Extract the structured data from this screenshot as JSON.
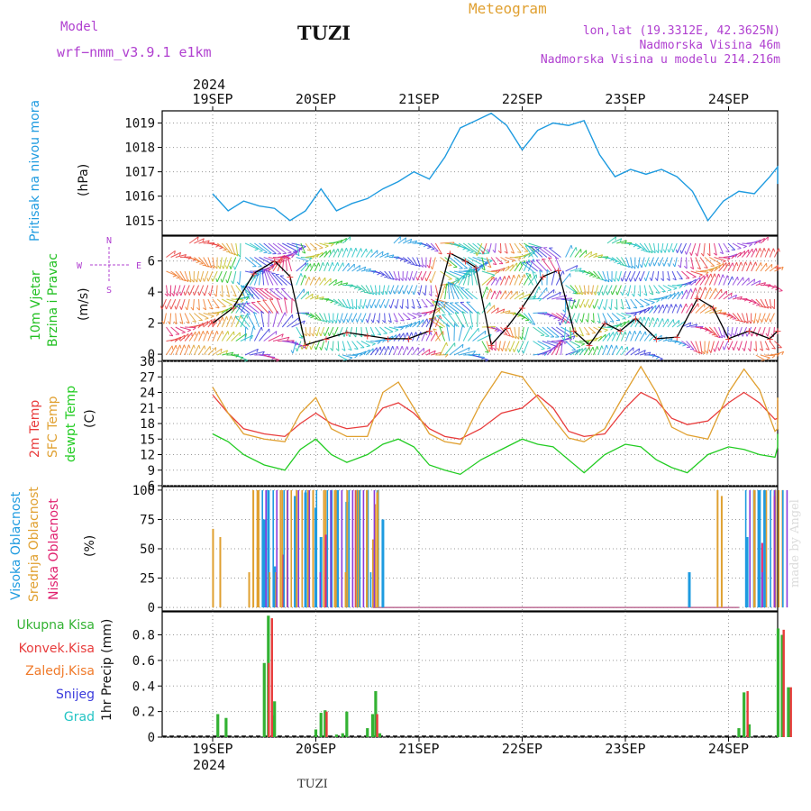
{
  "header": {
    "model_label": "Model",
    "model_name": "wrf−nmm_v3.9.1  e1km",
    "station": "TUZI",
    "title": "Meteogram",
    "lonlat": "lon,lat (19.3312E, 42.3625N)",
    "elevation": "Nadmorska Visina 46m",
    "model_elevation": "Nadmorska Visina u modelu 214.216m",
    "footer_station": "TUZI",
    "credit": "made by Angel"
  },
  "colors": {
    "pressure": "#1e9be0",
    "wind_label": "#22c022",
    "temp2m": "#e83c3c",
    "sfc": "#e0a030",
    "dewpt": "#22cc22",
    "high_cloud": "#1e9be0",
    "mid_cloud": "#e0a030",
    "low_cloud": "#e0206e",
    "rain_total": "#33b233",
    "convective": "#e83c3c",
    "freezing": "#f07a2a",
    "snow": "#3a3adc",
    "hail": "#22c4c4",
    "compass": "#b040d0"
  },
  "chart_data": [
    {
      "type": "line",
      "panel": "pressure",
      "ylabel_1": "Pritisak na nivou mora",
      "ylabel_2": "(hPa)",
      "yticks": [
        "1015",
        "1016",
        "1017",
        "1018",
        "1019"
      ],
      "ylim": [
        1014.4,
        1019.5
      ],
      "x_date_labels": [
        "19SEP",
        "20SEP",
        "21SEP",
        "22SEP",
        "23SEP",
        "24SEP"
      ],
      "year_label": "2024",
      "x_days": [
        0.0,
        0.15,
        0.3,
        0.45,
        0.6,
        0.75,
        0.9,
        1.05,
        1.2,
        1.35,
        1.5,
        1.65,
        1.8,
        1.95,
        2.1,
        2.25,
        2.4,
        2.55,
        2.7,
        2.85,
        3.0,
        3.15,
        3.3,
        3.45,
        3.6,
        3.75,
        3.9,
        4.05,
        4.2,
        4.35,
        4.5,
        4.65,
        4.8,
        4.95,
        5.1,
        5.25,
        5.4,
        5.55,
        5.65
      ],
      "values": [
        1016.1,
        1015.4,
        1015.8,
        1015.6,
        1015.5,
        1015.0,
        1015.4,
        1016.3,
        1015.4,
        1015.7,
        1015.9,
        1016.3,
        1016.6,
        1017.0,
        1016.7,
        1017.6,
        1018.8,
        1019.1,
        1019.4,
        1018.9,
        1017.9,
        1018.7,
        1019.0,
        1018.9,
        1019.1,
        1017.7,
        1016.8,
        1017.1,
        1016.9,
        1017.1,
        1016.8,
        1016.2,
        1015.0,
        1015.8,
        1016.2,
        1016.1,
        1016.8,
        1017.2,
        1016.5
      ],
      "grid": true
    },
    {
      "type": "line",
      "panel": "wind",
      "ylabel_1": "10m Vjetar",
      "ylabel_2": "Brzina i Pravac",
      "ylabel_3": "(m/s)",
      "compass": [
        "N",
        "W",
        "E",
        "S"
      ],
      "yticks": [
        "0",
        "2",
        "4",
        "6"
      ],
      "ylim": [
        -0.4,
        7.6
      ],
      "x_days": [
        0.0,
        0.2,
        0.4,
        0.6,
        0.75,
        0.9,
        1.1,
        1.3,
        1.5,
        1.7,
        1.9,
        2.1,
        2.3,
        2.45,
        2.55,
        2.7,
        2.85,
        3.0,
        3.2,
        3.35,
        3.5,
        3.65,
        3.8,
        3.95,
        4.1,
        4.3,
        4.5,
        4.7,
        4.85,
        5.0,
        5.2,
        5.4,
        5.55,
        5.65
      ],
      "values": [
        2.0,
        3.0,
        5.2,
        6.0,
        5.0,
        0.6,
        1.0,
        1.4,
        1.2,
        1.0,
        1.0,
        1.5,
        6.5,
        6.0,
        5.6,
        0.6,
        1.7,
        3.0,
        5.0,
        5.4,
        1.5,
        0.6,
        2.0,
        1.5,
        2.3,
        1.0,
        1.1,
        3.6,
        3.0,
        1.0,
        1.5,
        1.0,
        1.5,
        5.6
      ],
      "grid": true
    },
    {
      "type": "line",
      "panel": "temperature",
      "ylabel_1": "2m Temp",
      "ylabel_2": "SFC Temp",
      "ylabel_3": "dewpt Temp",
      "ylabel_4": "(C)",
      "yticks": [
        "6",
        "9",
        "12",
        "15",
        "18",
        "21",
        "24",
        "27",
        "30"
      ],
      "ylim": [
        6,
        30
      ],
      "x_days": [
        0.0,
        0.15,
        0.3,
        0.5,
        0.7,
        0.85,
        1.0,
        1.15,
        1.3,
        1.5,
        1.65,
        1.8,
        1.95,
        2.1,
        2.25,
        2.4,
        2.6,
        2.8,
        3.0,
        3.15,
        3.3,
        3.45,
        3.6,
        3.8,
        4.0,
        4.15,
        4.3,
        4.45,
        4.6,
        4.8,
        5.0,
        5.15,
        5.3,
        5.45,
        5.55,
        5.65
      ],
      "series": [
        {
          "key": "temp2m",
          "values": [
            23.5,
            20,
            17,
            16,
            15.5,
            18,
            20,
            18,
            17,
            17.5,
            21,
            22,
            20,
            17,
            15.5,
            15,
            17,
            20,
            21,
            23.5,
            21,
            16.5,
            15.5,
            16,
            21,
            24,
            22.5,
            19,
            17.8,
            18.5,
            22,
            24,
            22,
            18.8,
            19,
            22.5
          ]
        },
        {
          "key": "sfc",
          "values": [
            25,
            20,
            16,
            15,
            14.5,
            20,
            23,
            17,
            15.5,
            15.5,
            24,
            26,
            21,
            16,
            14.5,
            14,
            22,
            28,
            27,
            23,
            19,
            15.2,
            14.5,
            17,
            24,
            29,
            24,
            17.3,
            15.8,
            15,
            24,
            28.5,
            24.5,
            16.5,
            17,
            23
          ]
        },
        {
          "key": "dewpt",
          "values": [
            16,
            14.5,
            12,
            10,
            9,
            13,
            15,
            12,
            10.5,
            12,
            14,
            15,
            13.5,
            10,
            9,
            8.2,
            11,
            13,
            15,
            14,
            13.5,
            11,
            8.5,
            12,
            14,
            13.5,
            11,
            9.5,
            8.5,
            12,
            13.5,
            13,
            12,
            11.5,
            13.5,
            16
          ]
        }
      ],
      "grid": true
    },
    {
      "type": "bar",
      "panel": "cloud",
      "ylabel_1": "Visoka Oblacnost",
      "ylabel_2": "Srednja Oblacnost",
      "ylabel_3": "Niska Oblacnost",
      "ylabel_4": "(%)",
      "yticks": [
        "0",
        "25",
        "50",
        "75",
        "100"
      ],
      "ylim": [
        -3,
        103
      ],
      "series": [
        {
          "key": "high_cloud",
          "points": [
            [
              0.5,
              75
            ],
            [
              0.54,
              100
            ],
            [
              0.6,
              35
            ],
            [
              0.8,
              95
            ],
            [
              0.9,
              98
            ],
            [
              1.0,
              85
            ],
            [
              1.05,
              60
            ],
            [
              1.15,
              100
            ],
            [
              1.2,
              100
            ],
            [
              1.3,
              90
            ],
            [
              1.4,
              100
            ],
            [
              1.5,
              100
            ],
            [
              1.6,
              100
            ],
            [
              1.65,
              75
            ],
            [
              4.62,
              30
            ],
            [
              5.18,
              60
            ],
            [
              5.25,
              100
            ],
            [
              5.3,
              100
            ],
            [
              5.35,
              100
            ],
            [
              5.45,
              100
            ]
          ]
        },
        {
          "key": "mid_cloud",
          "points": [
            [
              0.03,
              67
            ],
            [
              0.1,
              60
            ],
            [
              0.38,
              30
            ],
            [
              0.42,
              100
            ],
            [
              0.46,
              100
            ],
            [
              0.64,
              30
            ],
            [
              0.7,
              100
            ],
            [
              0.75,
              100
            ],
            [
              0.84,
              100
            ],
            [
              0.95,
              100
            ],
            [
              1.0,
              100
            ],
            [
              1.12,
              100
            ],
            [
              1.22,
              100
            ],
            [
              1.33,
              100
            ],
            [
              1.44,
              100
            ],
            [
              1.52,
              100
            ],
            [
              1.58,
              58
            ],
            [
              1.6,
              88
            ],
            [
              1.62,
              98
            ],
            [
              4.92,
              100
            ],
            [
              4.96,
              95
            ],
            [
              5.28,
              100
            ],
            [
              5.48,
              100
            ],
            [
              5.55,
              100
            ]
          ]
        },
        {
          "key": "low_cloud",
          "points": [
            [
              1.07,
              62
            ],
            [
              0.66,
              45
            ],
            [
              1.36,
              100
            ],
            [
              5.3,
              55
            ],
            [
              5.42,
              95
            ]
          ]
        }
      ],
      "grid": true
    },
    {
      "type": "bar",
      "panel": "precip",
      "ylabel": "1hr Precip (mm)",
      "legend": [
        "Ukupna Kisa",
        "Konvek.Kisa",
        "Zaledj.Kisa",
        "Snijeg",
        "Grad"
      ],
      "yticks": [
        "0",
        "0.2",
        "0.4",
        "0.6",
        "0.8"
      ],
      "ylim": [
        0,
        0.98
      ],
      "x_date_labels": [
        "19SEP",
        "20SEP",
        "21SEP",
        "22SEP",
        "23SEP",
        "24SEP"
      ],
      "year_label": "2024",
      "total": [
        [
          0.05,
          0.18
        ],
        [
          0.13,
          0.15
        ],
        [
          0.5,
          0.58
        ],
        [
          0.54,
          0.95
        ],
        [
          0.58,
          0.17
        ],
        [
          0.6,
          0.28
        ],
        [
          1.0,
          0.06
        ],
        [
          1.05,
          0.19
        ],
        [
          1.09,
          0.21
        ],
        [
          1.2,
          0.02
        ],
        [
          1.26,
          0.03
        ],
        [
          1.3,
          0.2
        ],
        [
          1.5,
          0.07
        ],
        [
          1.55,
          0.18
        ],
        [
          1.58,
          0.36
        ],
        [
          1.62,
          0.03
        ],
        [
          5.1,
          0.07
        ],
        [
          5.15,
          0.35
        ],
        [
          5.2,
          0.1
        ],
        [
          5.48,
          0.85
        ],
        [
          5.52,
          0.8
        ],
        [
          5.58,
          0.39
        ]
      ],
      "convective": [
        [
          0.52,
          0.58
        ],
        [
          0.55,
          0.93
        ],
        [
          1.08,
          0.2
        ],
        [
          1.57,
          0.18
        ],
        [
          5.16,
          0.36
        ],
        [
          5.51,
          0.84
        ],
        [
          5.58,
          0.39
        ]
      ],
      "grid": true
    }
  ]
}
